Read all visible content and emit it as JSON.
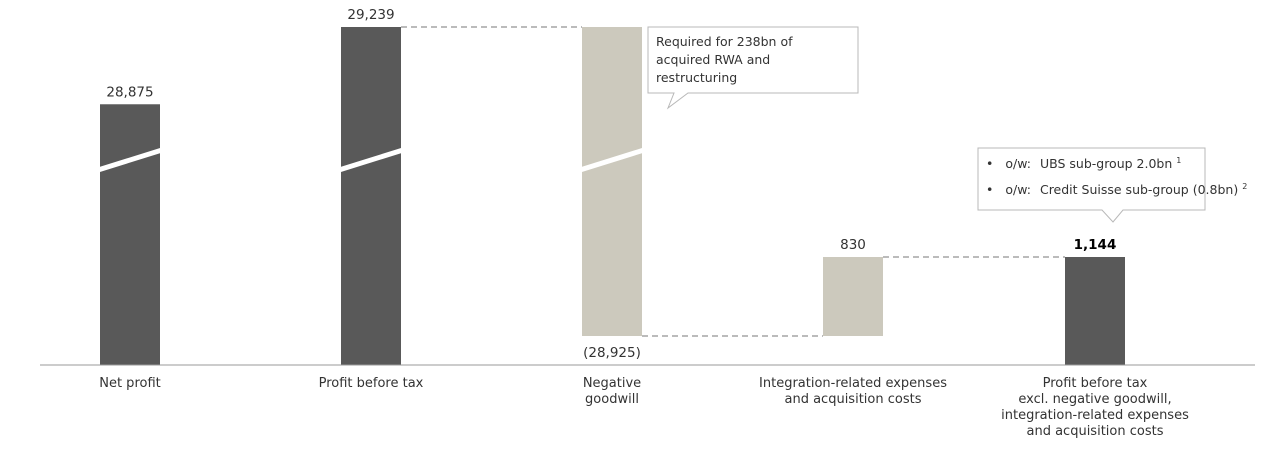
{
  "chart_data": {
    "type": "bar",
    "subtype": "waterfall",
    "axis_break": true,
    "categories": [
      [
        "Net profit"
      ],
      [
        "Profit before tax"
      ],
      [
        "Negative",
        "goodwill"
      ],
      [
        "Integration-related expenses",
        "and acquisition costs"
      ],
      [
        "Profit before tax",
        "excl. negative goodwill,",
        "integration-related expenses",
        "and acquisition costs"
      ]
    ],
    "bars": [
      {
        "value": 28875,
        "label": "28,875",
        "kind": "total",
        "color": "#595959"
      },
      {
        "value": 29239,
        "label": "29,239",
        "kind": "total",
        "color": "#595959"
      },
      {
        "value": -28925,
        "label": "(28,925)",
        "kind": "delta",
        "color": "#ccc9bd"
      },
      {
        "value": 830,
        "label": "830",
        "kind": "delta",
        "color": "#ccc9bd"
      },
      {
        "value": 1144,
        "label": "1,144",
        "kind": "total",
        "color": "#595959",
        "bold": true
      }
    ],
    "annotations": {
      "negative_goodwill": [
        "Required for 238bn of",
        "acquired RWA and",
        "restructuring"
      ],
      "final_breakdown": [
        {
          "bullet": "•",
          "prefix": "o/w:",
          "text": "UBS sub-group 2.0bn",
          "note": "1"
        },
        {
          "bullet": "•",
          "prefix": "o/w:",
          "text": "Credit Suisse sub-group (0.8bn)",
          "note": "2"
        }
      ]
    },
    "colors": {
      "dark": "#595959",
      "light": "#ccc9bd",
      "connector": "#777777",
      "axis": "#999999"
    }
  }
}
